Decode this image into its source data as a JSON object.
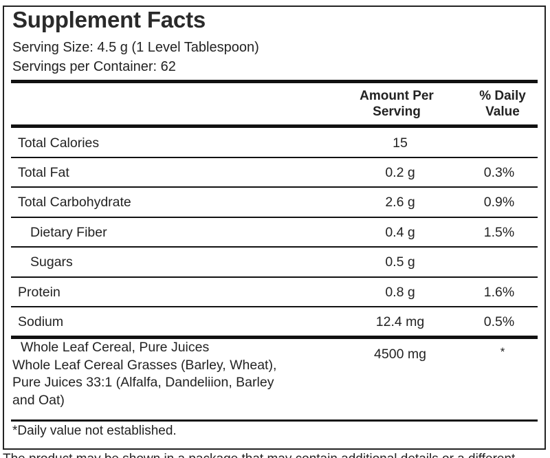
{
  "title": "Supplement Facts",
  "serving_size": "Serving Size: 4.5 g (1 Level Tablespoon)",
  "servings_per_container": "Servings per Container: 62",
  "headers": {
    "amount": [
      "Amount Per",
      "Serving"
    ],
    "dv": [
      "% Daily",
      "Value"
    ]
  },
  "rows": [
    {
      "name": "Total Calories",
      "amount": "15",
      "dv": ""
    },
    {
      "name": "Total Fat",
      "amount": "0.2 g",
      "dv": "0.3%"
    },
    {
      "name": "Total Carbohydrate",
      "amount": "2.6 g",
      "dv": "0.9%"
    },
    {
      "name": "Dietary Fiber",
      "amount": "0.4 g",
      "dv": "1.5%"
    },
    {
      "name": "Sugars",
      "amount": "0.5 g",
      "dv": ""
    },
    {
      "name": "Protein",
      "amount": "0.8 g",
      "dv": "1.6%"
    },
    {
      "name": "Sodium",
      "amount": "12.4 mg",
      "dv": "0.5%"
    }
  ],
  "blend": {
    "lines": [
      "Whole Leaf Cereal, Pure Juices",
      "Whole Leaf Cereal Grasses (Barley, Wheat),",
      "Pure Juices 33:1 (Alfalfa, Dandeliion, Barley",
      "and Oat)"
    ],
    "amount": "4500 mg",
    "dv": "*"
  },
  "footnote": "*Daily value not established.",
  "cut_text": "The product may be shown in a package that may contain additional details or a different"
}
